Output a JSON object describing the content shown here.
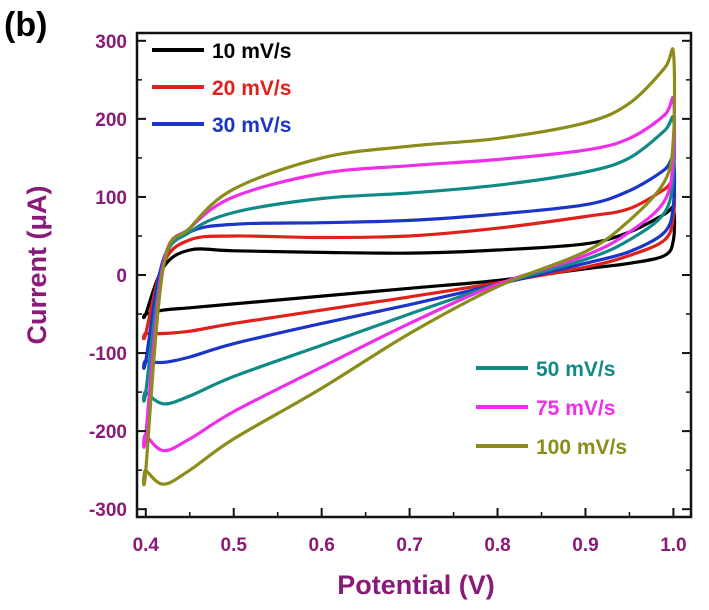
{
  "panel_label": "(b)",
  "chart_data": {
    "type": "line",
    "title": "",
    "xlabel": "Potential (V)",
    "ylabel": "Current (μA)",
    "xlim": [
      0.39,
      1.02
    ],
    "ylim": [
      -310,
      310
    ],
    "x_ticks": [
      0.4,
      0.5,
      0.6,
      0.7,
      0.8,
      0.9,
      1.0
    ],
    "x_tick_labels": [
      "0.4",
      "0.5",
      "0.6",
      "0.7",
      "0.8",
      "0.9",
      "1.0"
    ],
    "y_ticks": [
      -300,
      -200,
      -100,
      0,
      100,
      200,
      300
    ],
    "y_tick_labels": [
      "-300",
      "-200",
      "-100",
      "0",
      "100",
      "200",
      "300"
    ],
    "grid": false,
    "legend_groups": [
      {
        "position": "top-left",
        "series": [
          "10 mV/s",
          "20 mV/s",
          "30 mV/s"
        ]
      },
      {
        "position": "bottom-right",
        "series": [
          "50 mV/s",
          "75 mV/s",
          "100 mV/s"
        ]
      }
    ],
    "series": [
      {
        "name": "10 mV/s",
        "color": "#000000",
        "x": [
          0.4,
          0.42,
          0.45,
          0.5,
          0.6,
          0.7,
          0.8,
          0.9,
          0.95,
          0.99,
          1.0,
          1.0,
          0.99,
          0.95,
          0.9,
          0.8,
          0.7,
          0.6,
          0.5,
          0.45,
          0.42,
          0.4
        ],
        "y": [
          -50,
          -45,
          -42,
          -37,
          -27,
          -17,
          -7,
          8,
          15,
          25,
          45,
          85,
          78,
          55,
          40,
          32,
          28,
          29,
          31,
          32,
          10,
          -50
        ]
      },
      {
        "name": "20 mV/s",
        "color": "#e0201b",
        "x": [
          0.4,
          0.42,
          0.45,
          0.5,
          0.6,
          0.7,
          0.8,
          0.9,
          0.95,
          0.99,
          1.0,
          1.0,
          0.99,
          0.95,
          0.9,
          0.8,
          0.7,
          0.6,
          0.5,
          0.45,
          0.42,
          0.4
        ],
        "y": [
          -75,
          -75,
          -72,
          -62,
          -45,
          -28,
          -10,
          10,
          25,
          45,
          75,
          120,
          110,
          85,
          75,
          60,
          50,
          48,
          50,
          45,
          15,
          -75
        ]
      },
      {
        "name": "30 mV/s",
        "color": "#1a35c8",
        "x": [
          0.4,
          0.42,
          0.45,
          0.5,
          0.6,
          0.7,
          0.8,
          0.9,
          0.95,
          0.99,
          1.0,
          1.0,
          0.99,
          0.95,
          0.9,
          0.8,
          0.7,
          0.6,
          0.5,
          0.45,
          0.42,
          0.4
        ],
        "y": [
          -110,
          -112,
          -105,
          -88,
          -62,
          -38,
          -12,
          15,
          30,
          55,
          90,
          150,
          135,
          108,
          90,
          78,
          70,
          67,
          65,
          55,
          20,
          -110
        ]
      },
      {
        "name": "50 mV/s",
        "color": "#0f8a87",
        "x": [
          0.4,
          0.42,
          0.45,
          0.5,
          0.6,
          0.7,
          0.8,
          0.9,
          0.95,
          0.99,
          1.0,
          1.0,
          0.99,
          0.95,
          0.9,
          0.8,
          0.7,
          0.6,
          0.5,
          0.45,
          0.42,
          0.4
        ],
        "y": [
          -150,
          -165,
          -155,
          -130,
          -90,
          -50,
          -12,
          20,
          45,
          80,
          130,
          200,
          185,
          150,
          132,
          115,
          105,
          98,
          80,
          55,
          15,
          -150
        ]
      },
      {
        "name": "75 mV/s",
        "color": "#ee2ee8",
        "x": [
          0.4,
          0.42,
          0.45,
          0.5,
          0.6,
          0.7,
          0.8,
          0.9,
          0.95,
          0.99,
          1.0,
          1.0,
          0.99,
          0.95,
          0.9,
          0.8,
          0.7,
          0.6,
          0.5,
          0.45,
          0.42,
          0.4
        ],
        "y": [
          -205,
          -225,
          -210,
          -175,
          -118,
          -62,
          -12,
          25,
          55,
          95,
          150,
          225,
          205,
          175,
          160,
          148,
          140,
          130,
          100,
          60,
          15,
          -205
        ]
      },
      {
        "name": "100 mV/s",
        "color": "#8c8c1a",
        "x": [
          0.4,
          0.42,
          0.45,
          0.5,
          0.6,
          0.7,
          0.8,
          0.9,
          0.95,
          0.99,
          1.0,
          1.0,
          0.99,
          0.95,
          0.9,
          0.8,
          0.7,
          0.6,
          0.5,
          0.45,
          0.42,
          0.4
        ],
        "y": [
          -250,
          -268,
          -250,
          -210,
          -145,
          -75,
          -15,
          30,
          70,
          120,
          175,
          285,
          265,
          220,
          195,
          175,
          165,
          150,
          110,
          60,
          10,
          -250
        ]
      }
    ]
  }
}
